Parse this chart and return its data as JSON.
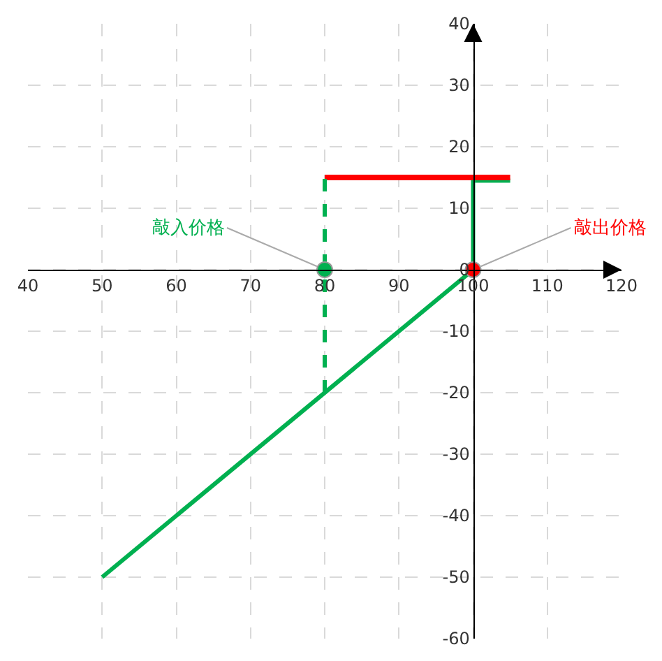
{
  "chart_data": {
    "type": "line",
    "xlim": [
      40,
      120
    ],
    "ylim": [
      -60,
      40
    ],
    "xticks": [
      40,
      50,
      60,
      70,
      80,
      90,
      100,
      110,
      120
    ],
    "yticks": [
      -60,
      -50,
      -40,
      -30,
      -20,
      -10,
      0,
      10,
      20,
      30,
      40
    ],
    "grid": true,
    "series": [
      {
        "color": "#00b050",
        "x": [
          50,
          100,
          100,
          105
        ],
        "values": [
          -50,
          0,
          14.5,
          14.5
        ]
      },
      {
        "color": "#ff0000",
        "x": [
          80,
          105
        ],
        "values": [
          15,
          15
        ]
      },
      {
        "color": "#00b050",
        "x": [
          80,
          80
        ],
        "values": [
          -20,
          15
        ],
        "line_style": "dashed"
      },
      {
        "type": "scatter",
        "marker": "circle",
        "color": "#00b050",
        "x": [
          80
        ],
        "values": [
          0
        ]
      },
      {
        "type": "scatter",
        "marker": "circle",
        "color": "#ff0000",
        "x": [
          100
        ],
        "values": [
          0
        ]
      }
    ],
    "annotations": [
      {
        "text": "敲入价格",
        "x": 80,
        "y": 0
      },
      {
        "text": "敲出价格",
        "x": 100,
        "y": 0
      }
    ]
  }
}
